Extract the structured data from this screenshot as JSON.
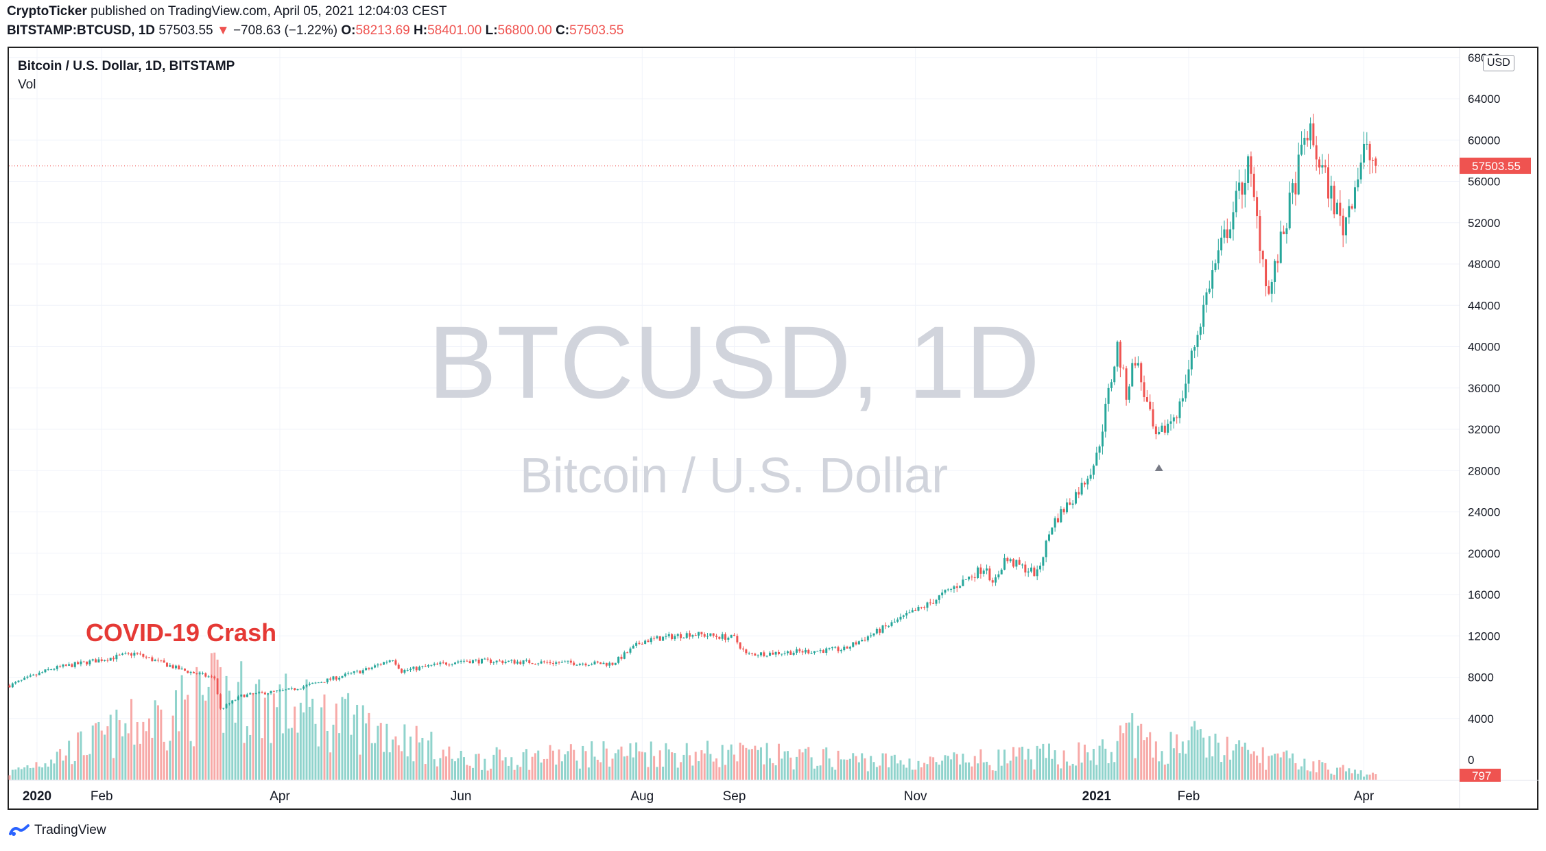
{
  "header": {
    "author": "CryptoTicker",
    "published": "published on TradingView.com, April 05, 2021 12:04:03 CEST",
    "symbol": "BITSTAMP:BTCUSD, 1D",
    "last": "57503.55",
    "change": "−708.63 (−1.22%)",
    "open_label": "O:",
    "open": "58213.69",
    "high_label": "H:",
    "high": "58401.00",
    "low_label": "L:",
    "low": "56800.00",
    "close_label": "C:",
    "close": "57503.55"
  },
  "legend": {
    "title": "Bitcoin / U.S. Dollar, 1D, BITSTAMP",
    "vol": "Vol"
  },
  "currency_badge": "USD",
  "watermark": {
    "line1": "BTCUSD, 1D",
    "line2": "Bitcoin / U.S. Dollar"
  },
  "annotation": {
    "text": "COVID-19 Crash",
    "color": "#e53935"
  },
  "price_label": "57503.55",
  "volume_label": "797",
  "footer": {
    "brand": "TradingView"
  },
  "colors": {
    "up": "#26a69a",
    "down": "#ef5350",
    "up_volume": "#8fd3cc",
    "down_volume": "#f7a9a7",
    "grid": "#f0f3fa",
    "watermark": "#d1d4dc"
  },
  "chart_data": {
    "type": "candlestick",
    "title": "Bitcoin / U.S. Dollar, 1D, BITSTAMP",
    "y_axis": {
      "label": "USD",
      "ticks": [
        0,
        4000,
        8000,
        12000,
        16000,
        20000,
        24000,
        28000,
        32000,
        36000,
        40000,
        44000,
        48000,
        52000,
        56000,
        60000,
        64000,
        68000
      ],
      "range": [
        -2000,
        69000
      ]
    },
    "x_axis": {
      "start_date": "2020-01-01",
      "end_date": "2021-04-05",
      "ticks": [
        {
          "label": "2020",
          "date": "2020-01-01",
          "bold": true
        },
        {
          "label": "Feb",
          "date": "2020-02-01"
        },
        {
          "label": "Apr",
          "date": "2020-04-01"
        },
        {
          "label": "Jun",
          "date": "2020-06-01"
        },
        {
          "label": "Aug",
          "date": "2020-08-01"
        },
        {
          "label": "Sep",
          "date": "2020-09-01"
        },
        {
          "label": "Nov",
          "date": "2020-11-01"
        },
        {
          "label": "2021",
          "date": "2021-01-01",
          "bold": true
        },
        {
          "label": "Feb",
          "date": "2021-02-01"
        },
        {
          "label": "Apr",
          "date": "2021-04-01"
        }
      ]
    },
    "price_points": [
      {
        "date": "2020-01-01",
        "price": 7200
      },
      {
        "date": "2020-01-15",
        "price": 8800
      },
      {
        "date": "2020-02-12",
        "price": 10300
      },
      {
        "date": "2020-02-28",
        "price": 8700
      },
      {
        "date": "2020-03-10",
        "price": 7900
      },
      {
        "date": "2020-03-12",
        "price": 4900
      },
      {
        "date": "2020-03-19",
        "price": 6200
      },
      {
        "date": "2020-04-05",
        "price": 6800
      },
      {
        "date": "2020-05-01",
        "price": 8800
      },
      {
        "date": "2020-05-09",
        "price": 9800
      },
      {
        "date": "2020-05-12",
        "price": 8600
      },
      {
        "date": "2020-06-01",
        "price": 9600
      },
      {
        "date": "2020-07-22",
        "price": 9300
      },
      {
        "date": "2020-08-01",
        "price": 11500
      },
      {
        "date": "2020-08-17",
        "price": 12200
      },
      {
        "date": "2020-09-01",
        "price": 11800
      },
      {
        "date": "2020-09-05",
        "price": 10200
      },
      {
        "date": "2020-10-08",
        "price": 10700
      },
      {
        "date": "2020-10-21",
        "price": 12700
      },
      {
        "date": "2020-11-05",
        "price": 15000
      },
      {
        "date": "2020-11-25",
        "price": 18800
      },
      {
        "date": "2020-11-27",
        "price": 16800
      },
      {
        "date": "2020-12-01",
        "price": 19400
      },
      {
        "date": "2020-12-12",
        "price": 18000
      },
      {
        "date": "2020-12-17",
        "price": 22800
      },
      {
        "date": "2020-12-27",
        "price": 26500
      },
      {
        "date": "2021-01-01",
        "price": 29300
      },
      {
        "date": "2021-01-08",
        "price": 40000
      },
      {
        "date": "2021-01-11",
        "price": 35500
      },
      {
        "date": "2021-01-14",
        "price": 39000
      },
      {
        "date": "2021-01-21",
        "price": 30800
      },
      {
        "date": "2021-01-29",
        "price": 34200
      },
      {
        "date": "2021-02-08",
        "price": 46200
      },
      {
        "date": "2021-02-21",
        "price": 57500
      },
      {
        "date": "2021-02-28",
        "price": 45000
      },
      {
        "date": "2021-03-13",
        "price": 61000
      },
      {
        "date": "2021-03-25",
        "price": 51500
      },
      {
        "date": "2021-04-01",
        "price": 59000
      },
      {
        "date": "2021-04-05",
        "price": 57503.55
      }
    ],
    "volume_axis": {
      "ticks": [
        0,
        4000,
        8000
      ]
    },
    "volume_points": [
      {
        "date": "2020-01-01",
        "volume": 1200
      },
      {
        "date": "2020-03-12",
        "volume": 15500
      },
      {
        "date": "2020-05-09",
        "volume": 8500
      },
      {
        "date": "2020-06-01",
        "volume": 3500
      },
      {
        "date": "2020-08-01",
        "volume": 5000
      },
      {
        "date": "2020-09-05",
        "volume": 4500
      },
      {
        "date": "2020-11-05",
        "volume": 3000
      },
      {
        "date": "2021-01-08",
        "volume": 5000
      },
      {
        "date": "2021-01-11",
        "volume": 10500
      },
      {
        "date": "2021-01-21",
        "volume": 4500
      },
      {
        "date": "2021-01-29",
        "volume": 7600
      },
      {
        "date": "2021-02-21",
        "volume": 4600
      },
      {
        "date": "2021-04-05",
        "volume": 797
      }
    ],
    "last_price": 57503.55,
    "last_volume": 797
  }
}
